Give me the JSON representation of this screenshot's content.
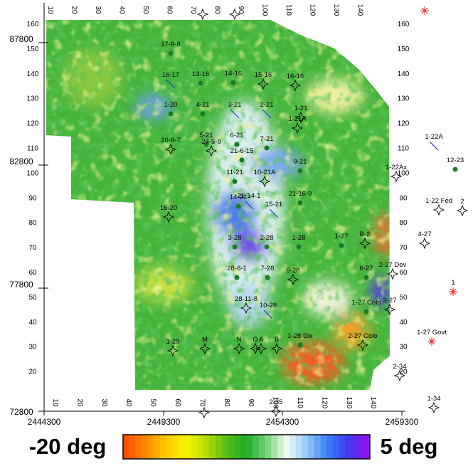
{
  "axes": {
    "x_labels": [
      "2444300",
      "2449300",
      "2454300",
      "2459300"
    ],
    "y_labels": [
      "87800",
      "82800",
      "77800",
      "72800"
    ]
  },
  "scales": {
    "top": [
      10,
      20,
      30,
      40,
      50,
      60,
      70,
      80,
      90,
      100,
      110,
      120,
      130,
      140
    ],
    "bottom": [
      10,
      20,
      30,
      40,
      50,
      60,
      70,
      80,
      90,
      100,
      110,
      120,
      130,
      140
    ],
    "left": [
      160,
      150,
      140,
      130,
      120,
      110,
      100,
      90,
      80,
      70,
      60,
      50,
      40,
      30,
      20
    ],
    "right": [
      160,
      150,
      140,
      130,
      120,
      110,
      100,
      90,
      80,
      70,
      60,
      50,
      40,
      30,
      20
    ]
  },
  "wells": [
    {
      "label": "17-9-8",
      "symbol": "dot"
    },
    {
      "label": "16-17",
      "symbol": "slash"
    },
    {
      "label": "13-16",
      "symbol": "dot"
    },
    {
      "label": "14-16",
      "symbol": "dot"
    },
    {
      "label": "15-16",
      "symbol": "star"
    },
    {
      "label": "16-16",
      "symbol": "star"
    },
    {
      "label": "1-20",
      "symbol": "dot"
    },
    {
      "label": "4-21",
      "symbol": "dot"
    },
    {
      "label": "3-21",
      "symbol": "slash"
    },
    {
      "label": "2-21",
      "symbol": "slash"
    },
    {
      "label": "1-21",
      "symbol": "star"
    },
    {
      "label": "1-21A",
      "symbol": "star"
    },
    {
      "label": "5-21",
      "symbol": "dot"
    },
    {
      "label": "6-21",
      "symbol": "dot"
    },
    {
      "label": "7-21",
      "symbol": "dot"
    },
    {
      "label": "24-5-9",
      "symbol": "star"
    },
    {
      "label": "20-8-7",
      "symbol": "star"
    },
    {
      "label": "21-6-15",
      "symbol": "dot"
    },
    {
      "label": "9-21",
      "symbol": "dot"
    },
    {
      "label": "11-21",
      "symbol": "dot"
    },
    {
      "label": "10-21A",
      "symbol": "star"
    },
    {
      "label": "1-22Ax",
      "symbol": "star"
    },
    {
      "label": "1-22A",
      "symbol": "slash"
    },
    {
      "label": "12-23",
      "symbol": "dot"
    },
    {
      "label": "21-14-1",
      "symbol": "slash"
    },
    {
      "label": "14-21",
      "symbol": "dot"
    },
    {
      "label": "15-21",
      "symbol": "slash"
    },
    {
      "label": "21-16-9",
      "symbol": "dot"
    },
    {
      "label": "16-20",
      "symbol": "star"
    },
    {
      "label": "1-22 Fed",
      "symbol": "star"
    },
    {
      "label": "2",
      "symbol": "star"
    },
    {
      "label": "4-27",
      "symbol": "star"
    },
    {
      "label": "3-28",
      "symbol": "dot"
    },
    {
      "label": "2-28",
      "symbol": "dot"
    },
    {
      "label": "1-28",
      "symbol": "dot"
    },
    {
      "label": "1-27",
      "symbol": "dot"
    },
    {
      "label": "B-2",
      "symbol": "star"
    },
    {
      "label": "28-6-1",
      "symbol": "dot"
    },
    {
      "label": "7-28",
      "symbol": "dot"
    },
    {
      "label": "8-28",
      "symbol": "star"
    },
    {
      "label": "6-27",
      "symbol": "dot"
    },
    {
      "label": "2-27 Dev",
      "symbol": "star"
    },
    {
      "label": "1",
      "symbol": "red"
    },
    {
      "label": "28-11-8",
      "symbol": "star"
    },
    {
      "label": "10-28",
      "symbol": "slash"
    },
    {
      "label": "1-27 Colo",
      "symbol": "dot"
    },
    {
      "label": "3-27",
      "symbol": "star"
    },
    {
      "label": "1-29",
      "symbol": "star"
    },
    {
      "label": "M",
      "symbol": "star"
    },
    {
      "label": "N",
      "symbol": "star"
    },
    {
      "label": "O",
      "symbol": "star"
    },
    {
      "label": "A",
      "symbol": "star"
    },
    {
      "label": "B",
      "symbol": "star"
    },
    {
      "label": "1-28 Dix",
      "symbol": "dot"
    },
    {
      "label": "2-27 Colo",
      "symbol": "star"
    },
    {
      "label": "1-27 Govt",
      "symbol": "red"
    },
    {
      "label": "2-34",
      "symbol": "star"
    },
    {
      "label": "2-35",
      "symbol": "star"
    },
    {
      "label": "1-34",
      "symbol": "star"
    }
  ],
  "colorbar": {
    "min_label": "-20 deg",
    "max_label": "5 deg"
  }
}
